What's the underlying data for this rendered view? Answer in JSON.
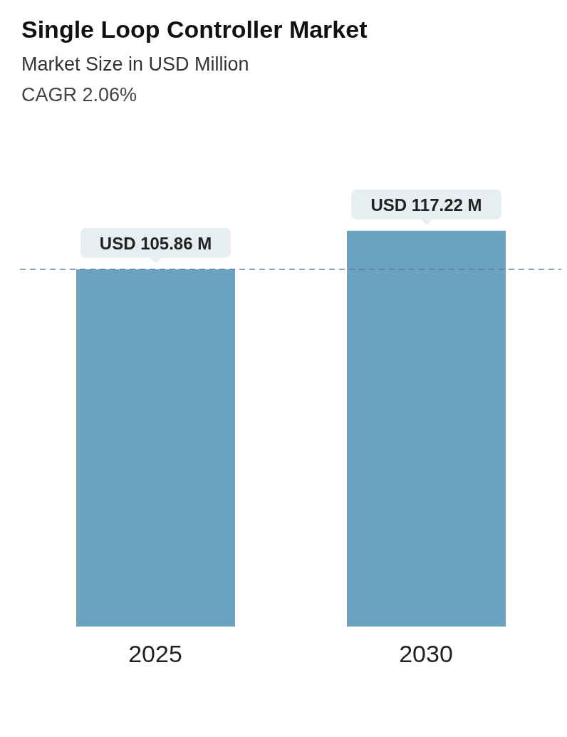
{
  "chart_data": {
    "type": "bar",
    "title": "Single Loop Controller Market",
    "subtitle": "Market Size in USD Million",
    "annotations": [
      "CAGR 2.06%"
    ],
    "categories": [
      "2025",
      "2030"
    ],
    "series": [
      {
        "color": "#6aa3bf",
        "values": [
          105.86,
          117.22
        ],
        "value_labels": [
          "USD 105.86 M",
          "USD 117.22 M"
        ]
      }
    ],
    "ref_lines": [
      {
        "axis": "y",
        "value": 105.86,
        "color": "#5a7f9e",
        "line_style": "dashed"
      }
    ],
    "grid": false,
    "legend": false
  }
}
